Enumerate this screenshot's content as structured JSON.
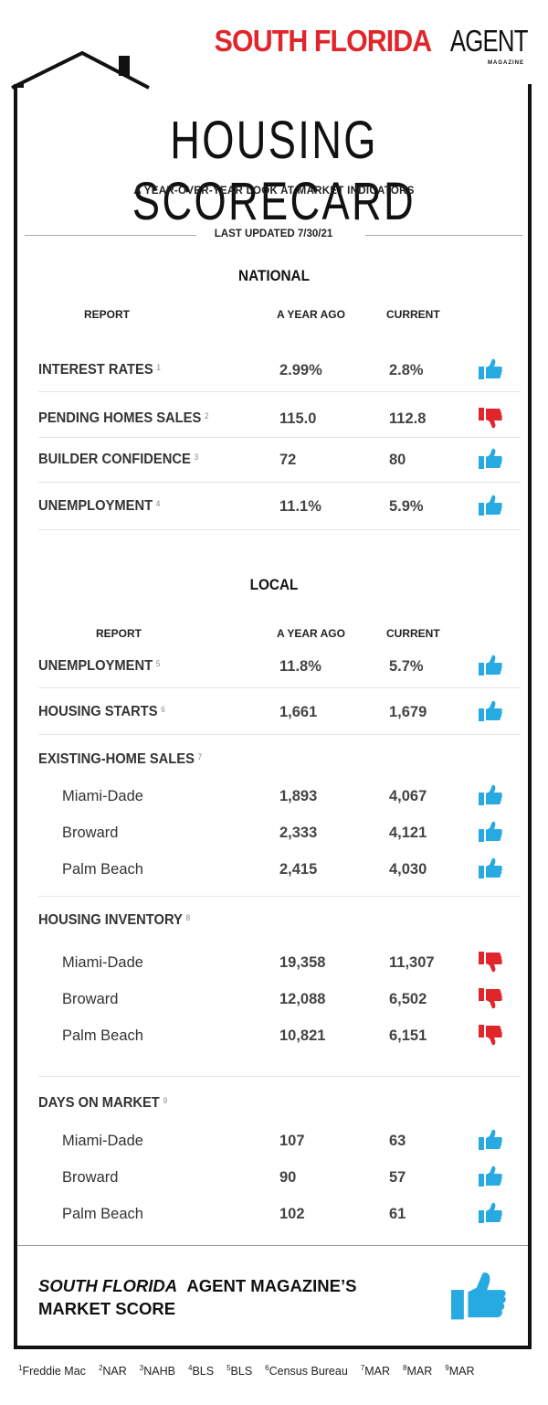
{
  "brand": {
    "name_red": "SOUTH FLORIDA",
    "name_black": "AGENT",
    "sub": "MAGAZINE"
  },
  "title": "HOUSING SCORECARD",
  "subtitle": "A YEAR-OVER-YEAR LOOK AT MARKET INDICATORS",
  "updated": "LAST UPDATED 7/30/21",
  "colors": {
    "thumbs_up": "#27a9e1",
    "thumbs_down": "#e0262b",
    "brand_red": "#e0262b"
  },
  "national": {
    "title": "NATIONAL",
    "headers": {
      "report": "REPORT",
      "ago": "A YEAR AGO",
      "current": "CURRENT"
    },
    "rows": [
      {
        "label": "INTEREST RATES",
        "note": "1",
        "ago": "2.99%",
        "current": "2.8%",
        "trend": "thumbs-up"
      },
      {
        "label": "PENDING HOMES SALES",
        "note": "2",
        "ago": "115.0",
        "current": "112.8",
        "trend": "thumbs-down"
      },
      {
        "label": "BUILDER CONFIDENCE",
        "note": "3",
        "ago": "72",
        "current": "80",
        "trend": "thumbs-up"
      },
      {
        "label": "UNEMPLOYMENT",
        "note": "4",
        "ago": "11.1%",
        "current": "5.9%",
        "trend": "thumbs-up"
      }
    ]
  },
  "local": {
    "title": "LOCAL",
    "headers": {
      "report": "REPORT",
      "ago": "A YEAR AGO",
      "current": "CURRENT"
    },
    "rows": [
      {
        "label": "UNEMPLOYMENT",
        "note": "5",
        "ago": "11.8%",
        "current": "5.7%",
        "trend": "thumbs-up"
      },
      {
        "label": "HOUSING STARTS",
        "note": "6",
        "ago": "1,661",
        "current": "1,679",
        "trend": "thumbs-up"
      }
    ],
    "groups": [
      {
        "label": "EXISTING-HOME SALES",
        "note": "7",
        "items": [
          {
            "name": "Miami-Dade",
            "ago": "1,893",
            "current": "4,067",
            "trend": "thumbs-up"
          },
          {
            "name": "Broward",
            "ago": "2,333",
            "current": "4,121",
            "trend": "thumbs-up"
          },
          {
            "name": "Palm Beach",
            "ago": "2,415",
            "current": "4,030",
            "trend": "thumbs-up"
          }
        ]
      },
      {
        "label": "HOUSING INVENTORY",
        "note": "8",
        "items": [
          {
            "name": "Miami-Dade",
            "ago": "19,358",
            "current": "11,307",
            "trend": "thumbs-down"
          },
          {
            "name": "Broward",
            "ago": "12,088",
            "current": "6,502",
            "trend": "thumbs-down"
          },
          {
            "name": "Palm Beach",
            "ago": "10,821",
            "current": "6,151",
            "trend": "thumbs-down"
          }
        ]
      },
      {
        "label": "DAYS ON MARKET",
        "note": "9",
        "items": [
          {
            "name": "Miami-Dade",
            "ago": "107",
            "current": "63",
            "trend": "thumbs-up"
          },
          {
            "name": "Broward",
            "ago": "90",
            "current": "57",
            "trend": "thumbs-up"
          },
          {
            "name": "Palm Beach",
            "ago": "102",
            "current": "61",
            "trend": "thumbs-up"
          }
        ]
      }
    ]
  },
  "market_score": {
    "italic": "SOUTH FLORIDA",
    "rest": "AGENT MAGAZINE’S",
    "line2": "MARKET SCORE",
    "trend": "thumbs-up"
  },
  "footnotes": [
    {
      "n": "1",
      "text": "Freddie Mac"
    },
    {
      "n": "2",
      "text": "NAR"
    },
    {
      "n": "3",
      "text": "NAHB"
    },
    {
      "n": "4",
      "text": "BLS"
    },
    {
      "n": "5",
      "text": "BLS"
    },
    {
      "n": "6",
      "text": "Census Bureau"
    },
    {
      "n": "7",
      "text": "MAR"
    },
    {
      "n": "8",
      "text": "MAR"
    },
    {
      "n": "9",
      "text": "MAR"
    }
  ]
}
